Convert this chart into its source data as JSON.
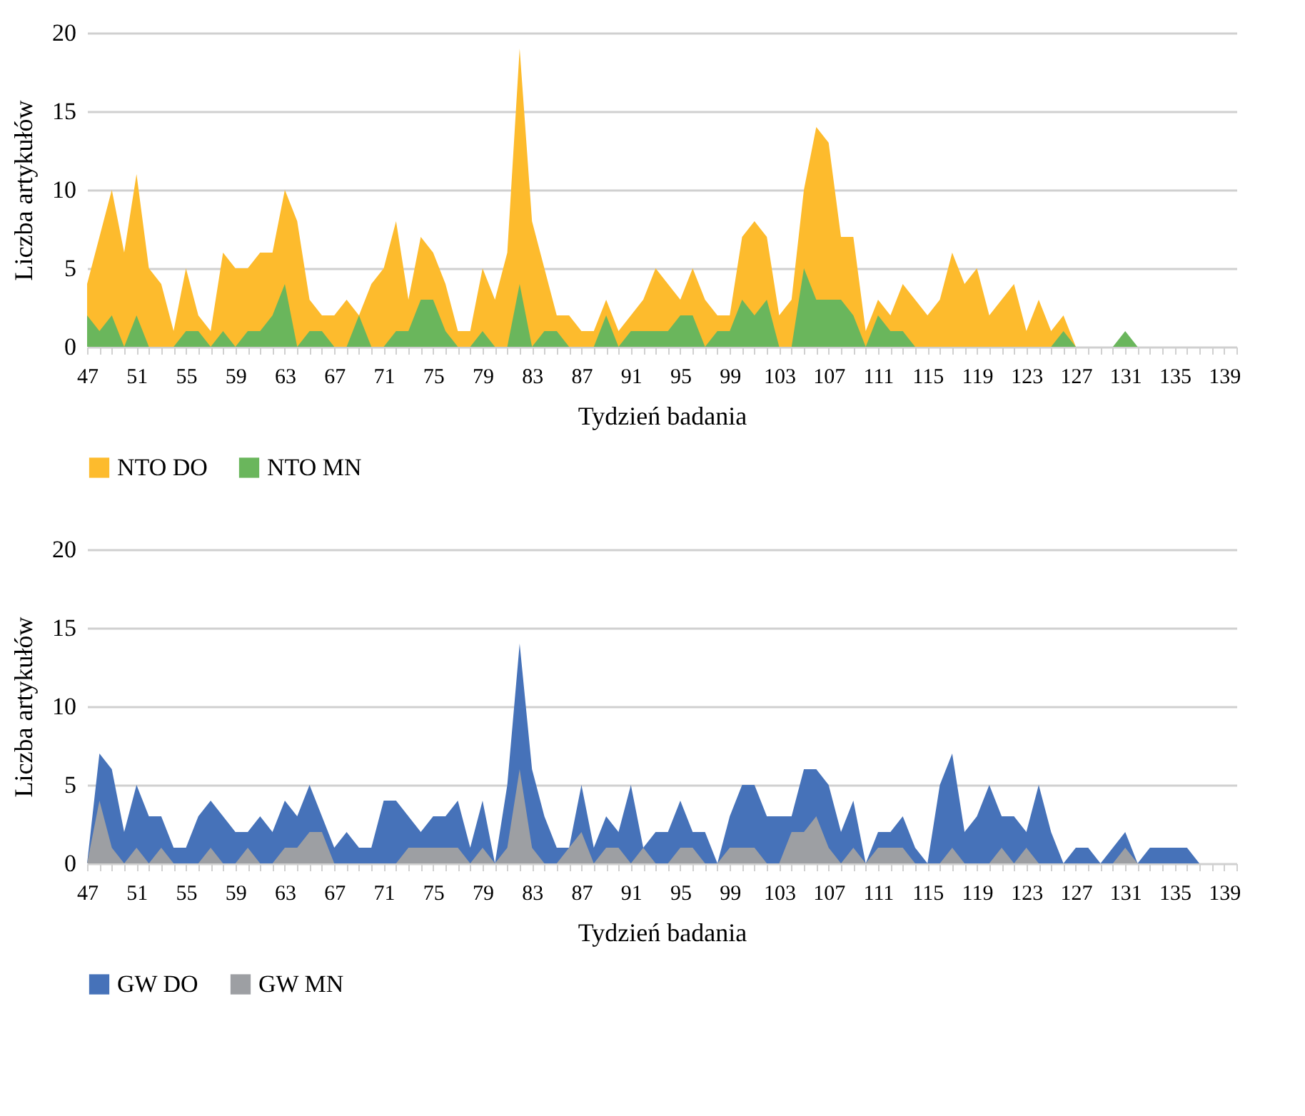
{
  "chart_data": [
    {
      "type": "area",
      "xlabel": "Tydzień badania",
      "ylabel": "Liczba artykułów",
      "ylim": [
        0,
        20
      ],
      "yticks": [
        0,
        5,
        10,
        15,
        20
      ],
      "grid": "y",
      "legend": "bottom",
      "categories": [
        "47",
        null,
        null,
        null,
        "51",
        null,
        null,
        null,
        "55",
        null,
        null,
        null,
        "59",
        null,
        null,
        null,
        "63",
        null,
        null,
        null,
        "67",
        null,
        null,
        null,
        "71",
        null,
        null,
        null,
        "75",
        null,
        null,
        null,
        "79",
        null,
        null,
        null,
        "83",
        null,
        null,
        null,
        "87",
        null,
        null,
        null,
        "91",
        null,
        null,
        null,
        "95",
        null,
        null,
        null,
        "99",
        null,
        null,
        null,
        "103",
        null,
        null,
        null,
        "107",
        null,
        null,
        null,
        "111",
        null,
        null,
        null,
        "115",
        null,
        null,
        null,
        "119",
        null,
        null,
        null,
        "123",
        null,
        null,
        null,
        "127",
        null,
        null,
        null,
        "131",
        null,
        null,
        null,
        "135",
        null,
        null,
        null,
        "139",
        null
      ],
      "series": [
        {
          "name": "NTO DO",
          "color": "#fdbb2d",
          "values": [
            4,
            7,
            10,
            6,
            11,
            5,
            4,
            1,
            5,
            2,
            1,
            6,
            5,
            5,
            6,
            6,
            10,
            8,
            3,
            2,
            2,
            3,
            2,
            4,
            5,
            8,
            3,
            7,
            6,
            4,
            1,
            1,
            5,
            3,
            6,
            19,
            8,
            5,
            2,
            2,
            1,
            1,
            3,
            1,
            2,
            3,
            5,
            4,
            3,
            5,
            3,
            2,
            2,
            7,
            8,
            7,
            2,
            3,
            10,
            14,
            13,
            7,
            7,
            1,
            3,
            2,
            4,
            3,
            2,
            3,
            6,
            4,
            5,
            2,
            3,
            4,
            1,
            3,
            1,
            2,
            0,
            0,
            0,
            0,
            0,
            0,
            0,
            0,
            0,
            0,
            0,
            0,
            0,
            0
          ]
        },
        {
          "name": "NTO MN",
          "color": "#6ab65c",
          "values": [
            2,
            1,
            2,
            0,
            2,
            0,
            0,
            0,
            1,
            1,
            0,
            1,
            0,
            1,
            1,
            2,
            4,
            0,
            1,
            1,
            0,
            0,
            2,
            0,
            0,
            1,
            1,
            3,
            3,
            1,
            0,
            0,
            1,
            0,
            0,
            4,
            0,
            1,
            1,
            0,
            0,
            0,
            2,
            0,
            1,
            1,
            1,
            1,
            2,
            2,
            0,
            1,
            1,
            3,
            2,
            3,
            0,
            0,
            5,
            3,
            3,
            3,
            2,
            0,
            2,
            1,
            1,
            0,
            0,
            0,
            0,
            0,
            0,
            0,
            0,
            0,
            0,
            0,
            0,
            1,
            0,
            0,
            0,
            0,
            1,
            0,
            0,
            0,
            0,
            0,
            0,
            0,
            0,
            0
          ]
        }
      ]
    },
    {
      "type": "area",
      "xlabel": "Tydzień badania",
      "ylabel": "Liczba artykułów",
      "ylim": [
        0,
        20
      ],
      "yticks": [
        0,
        5,
        10,
        15,
        20
      ],
      "grid": "y",
      "legend": "bottom",
      "categories": [
        "47",
        null,
        null,
        null,
        "51",
        null,
        null,
        null,
        "55",
        null,
        null,
        null,
        "59",
        null,
        null,
        null,
        "63",
        null,
        null,
        null,
        "67",
        null,
        null,
        null,
        "71",
        null,
        null,
        null,
        "75",
        null,
        null,
        null,
        "79",
        null,
        null,
        null,
        "83",
        null,
        null,
        null,
        "87",
        null,
        null,
        null,
        "91",
        null,
        null,
        null,
        "95",
        null,
        null,
        null,
        "99",
        null,
        null,
        null,
        "103",
        null,
        null,
        null,
        "107",
        null,
        null,
        null,
        "111",
        null,
        null,
        null,
        "115",
        null,
        null,
        null,
        "119",
        null,
        null,
        null,
        "123",
        null,
        null,
        null,
        "127",
        null,
        null,
        null,
        "131",
        null,
        null,
        null,
        "135",
        null,
        null,
        null,
        "139",
        null
      ],
      "series": [
        {
          "name": "GW DO",
          "color": "#4672b9",
          "values": [
            0,
            7,
            6,
            2,
            5,
            3,
            3,
            1,
            1,
            3,
            4,
            3,
            2,
            2,
            3,
            2,
            4,
            3,
            5,
            3,
            1,
            2,
            1,
            1,
            4,
            4,
            3,
            2,
            3,
            3,
            4,
            1,
            4,
            0,
            5,
            14,
            6,
            3,
            1,
            1,
            5,
            1,
            3,
            2,
            5,
            1,
            2,
            2,
            4,
            2,
            2,
            0,
            3,
            5,
            5,
            3,
            3,
            3,
            6,
            6,
            5,
            2,
            4,
            0,
            2,
            2,
            3,
            1,
            0,
            5,
            7,
            2,
            3,
            5,
            3,
            3,
            2,
            5,
            2,
            0,
            1,
            1,
            0,
            1,
            2,
            0,
            1,
            1,
            1,
            1,
            0,
            0,
            0,
            0
          ]
        },
        {
          "name": "GW MN",
          "color": "#9d9fa3",
          "values": [
            0,
            4,
            1,
            0,
            1,
            0,
            1,
            0,
            0,
            0,
            1,
            0,
            0,
            1,
            0,
            0,
            1,
            1,
            2,
            2,
            0,
            0,
            0,
            0,
            0,
            0,
            1,
            1,
            1,
            1,
            1,
            0,
            1,
            0,
            1,
            6,
            1,
            0,
            0,
            1,
            2,
            0,
            1,
            1,
            0,
            1,
            0,
            0,
            1,
            1,
            0,
            0,
            1,
            1,
            1,
            0,
            0,
            2,
            2,
            3,
            1,
            0,
            1,
            0,
            1,
            1,
            1,
            0,
            0,
            0,
            1,
            0,
            0,
            0,
            1,
            0,
            1,
            0,
            0,
            0,
            0,
            0,
            0,
            0,
            1,
            0,
            0,
            0,
            0,
            0,
            0,
            0,
            0,
            0
          ]
        }
      ]
    }
  ]
}
